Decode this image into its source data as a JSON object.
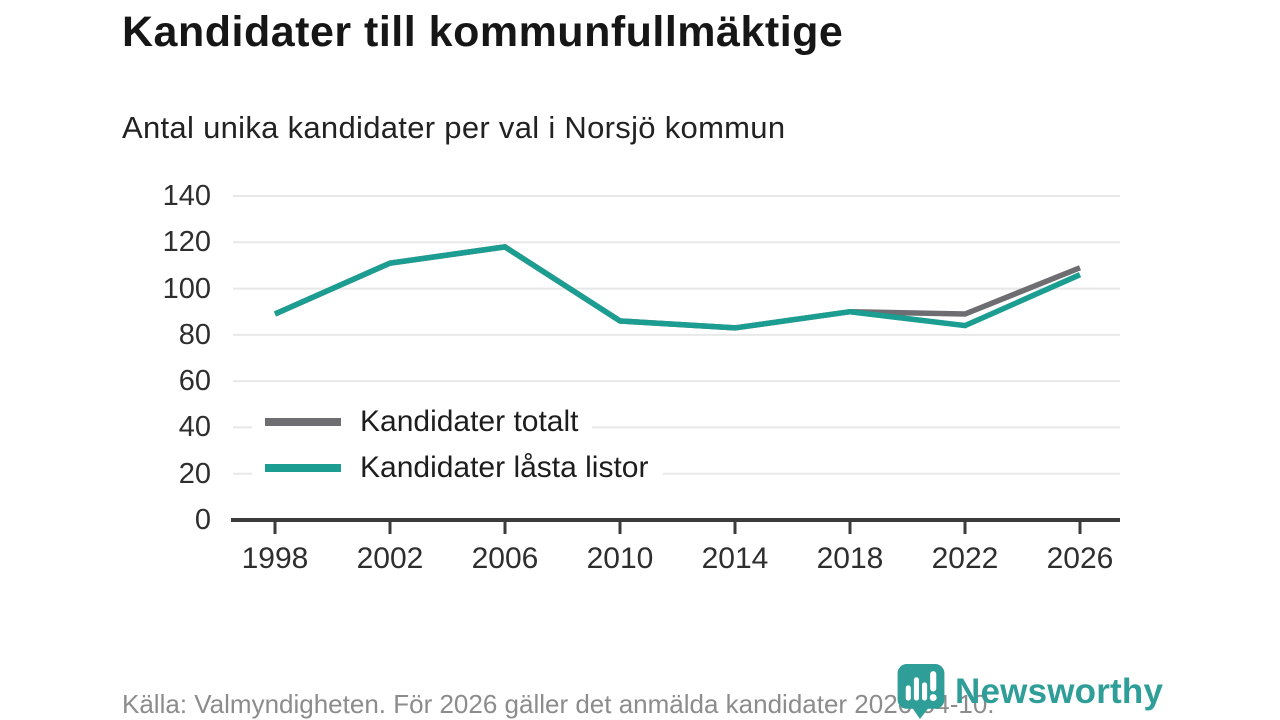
{
  "header": {
    "title": "Kandidater till kommunfullmäktige",
    "subtitle": "Antal unika kandidater per val i Norsjö kommun"
  },
  "chart_data": {
    "type": "line",
    "title": "Kandidater till kommunfullmäktige",
    "subtitle": "Antal unika kandidater per val i Norsjö kommun",
    "categories": [
      "1998",
      "2002",
      "2006",
      "2010",
      "2014",
      "2018",
      "2022",
      "2026"
    ],
    "series": [
      {
        "name": "Kandidater totalt",
        "color": "#6e6e72",
        "values": [
          89,
          111,
          118,
          86,
          83,
          90,
          89,
          109
        ]
      },
      {
        "name": "Kandidater låsta listor",
        "color": "#1b9e91",
        "values": [
          89,
          111,
          118,
          86,
          83,
          90,
          84,
          106
        ]
      }
    ],
    "ylim": [
      0,
      140
    ],
    "yticks": [
      0,
      20,
      40,
      60,
      80,
      100,
      120,
      140
    ],
    "grid": "horizontal",
    "legend_position": "inside-left-bottom"
  },
  "footer": {
    "source": "Källa: Valmyndigheten. För 2026 gäller det anmälda kandidater 2026-04-10.",
    "logo_text": "Newsworthy"
  },
  "theme": {
    "accent_teal": "#1b9e91",
    "series_gray": "#6e6e72",
    "grid_color": "#e8e8e8",
    "axis_color": "#3b3b3b",
    "label_color": "#2e2e2e",
    "title_color": "#161616",
    "footer_color": "#8c8c8c",
    "logo_color": "#2f9e98"
  }
}
